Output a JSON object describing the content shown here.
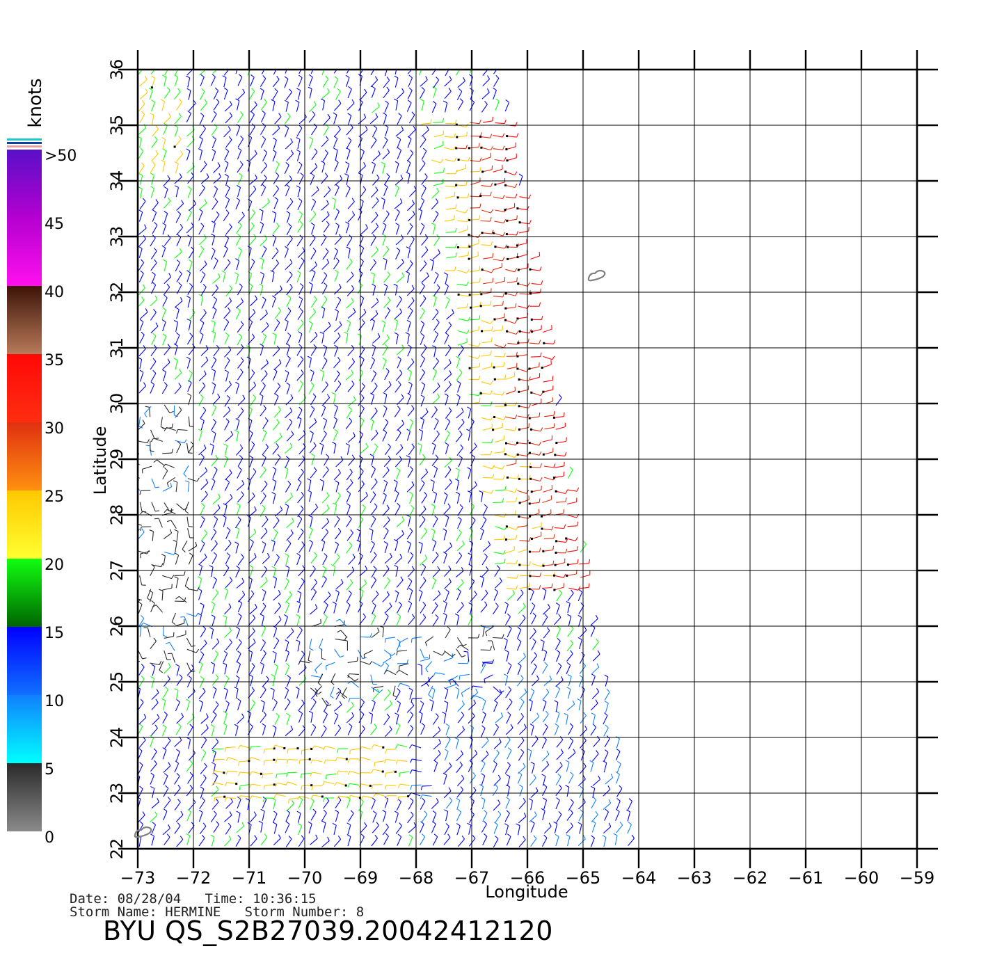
{
  "chart_data": {
    "type": "wind-barb map",
    "xlabel": "Longitude",
    "ylabel": "Latitude",
    "xlim": [
      -73,
      -59
    ],
    "ylim": [
      22,
      36
    ],
    "x_ticks": [
      "-73",
      "-72",
      "-71",
      "-70",
      "-69",
      "-68",
      "-67",
      "-66",
      "-65",
      "-64",
      "-63",
      "-62",
      "-61",
      "-60",
      "-59"
    ],
    "y_ticks": [
      "22",
      "23",
      "24",
      "25",
      "26",
      "27",
      "28",
      "29",
      "30",
      "31",
      "32",
      "33",
      "34",
      "35",
      "36"
    ],
    "grid": true,
    "swath": {
      "west_lon": -73,
      "east_edge": [
        [
          -66.5,
          36
        ],
        [
          -66.0,
          33
        ],
        [
          -65.5,
          30
        ],
        [
          -65.0,
          27
        ],
        [
          -64.0,
          22
        ]
      ]
    },
    "wind_bands_knots": [
      {
        "region": "swath east edge",
        "lat_range": [
          26.5,
          35
        ],
        "speed": "20-35"
      },
      {
        "region": "south band",
        "lat_range": [
          22.7,
          24
        ],
        "lon_range": [
          -71.5,
          -67.5
        ],
        "speed": "20-25"
      },
      {
        "region": "west side",
        "lat_range": [
          25.5,
          30
        ],
        "lon_range": [
          -73,
          -72
        ],
        "speed": "0-5"
      }
    ],
    "colorbar": {
      "title": "knots",
      "labels": [
        ">50",
        "45",
        "40",
        "35",
        "30",
        "25",
        "20",
        "15",
        "10",
        "5",
        "0"
      ],
      "stops": [
        {
          "from": 50,
          "to": 45,
          "colors": [
            "#5a10c8",
            "#b400d0"
          ]
        },
        {
          "from": 45,
          "to": 40,
          "colors": [
            "#b400d0",
            "#ff10ee"
          ]
        },
        {
          "from": 40,
          "to": 35,
          "colors": [
            "#3d1408",
            "#b87a5a"
          ]
        },
        {
          "from": 35,
          "to": 30,
          "colors": [
            "#ff0808",
            "#ff2e10"
          ]
        },
        {
          "from": 30,
          "to": 25,
          "colors": [
            "#e03010",
            "#ff9010"
          ]
        },
        {
          "from": 25,
          "to": 20,
          "colors": [
            "#ffc800",
            "#ffff30"
          ]
        },
        {
          "from": 20,
          "to": 15,
          "colors": [
            "#10ff10",
            "#006400"
          ]
        },
        {
          "from": 15,
          "to": 10,
          "colors": [
            "#0000ff",
            "#1070ff"
          ]
        },
        {
          "from": 10,
          "to": 5,
          "colors": [
            "#1080ff",
            "#00ffff"
          ]
        },
        {
          "from": 5,
          "to": 0,
          "colors": [
            "#2a2a2a",
            "#8a8a8a"
          ]
        }
      ]
    },
    "land_features": [
      {
        "name": "Bermuda",
        "lon": -64.75,
        "lat": 32.3
      },
      {
        "name": "small island",
        "lon": -72.9,
        "lat": 22.3
      }
    ]
  },
  "info": {
    "line1": "Date: 08/28/04   Time: 10:36:15",
    "line2": "Storm Name: HERMINE   Storm Number: 8",
    "product": "BYU QS_S2B27039.20042412120"
  }
}
